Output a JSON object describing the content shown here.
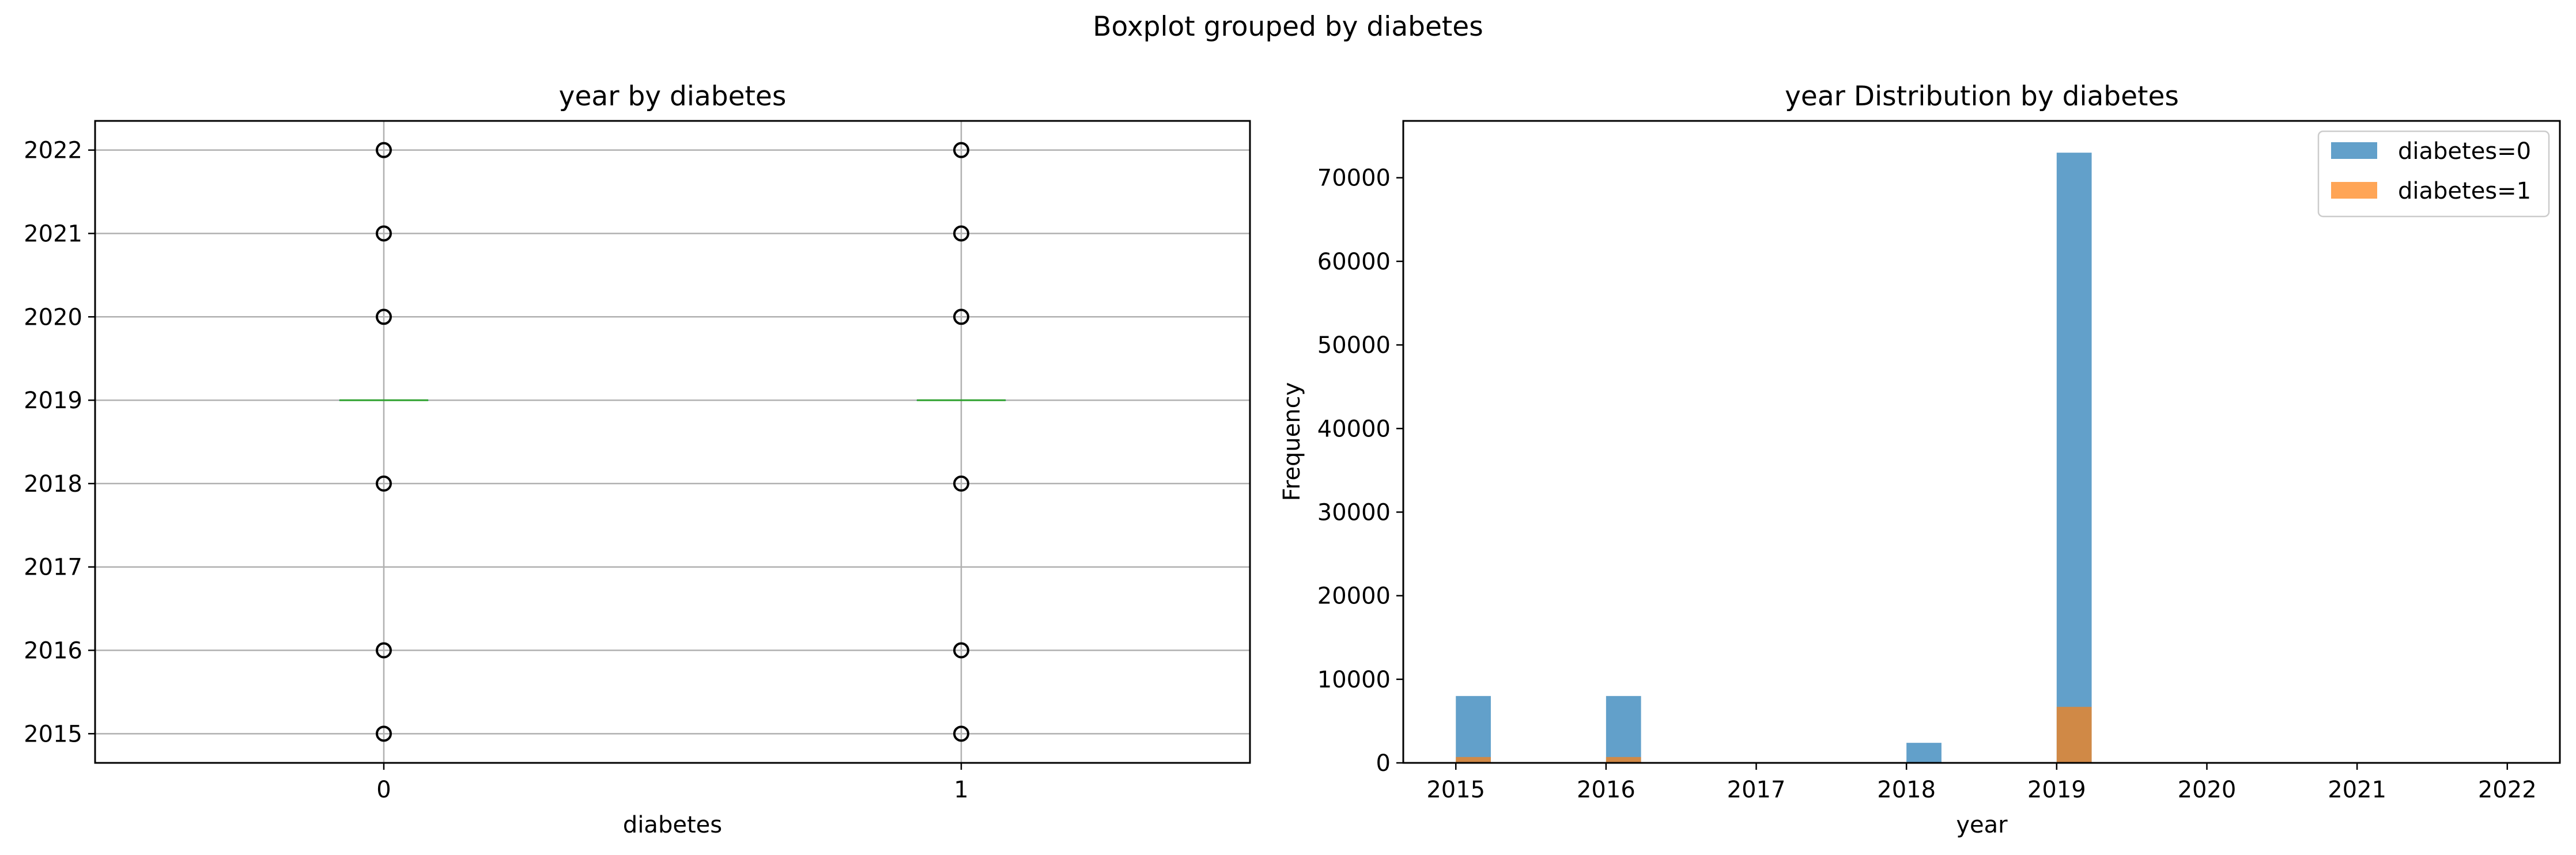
{
  "suptitle": "Boxplot grouped by diabetes",
  "chart_data": [
    {
      "type": "box",
      "title": "year by diabetes",
      "xlabel": "diabetes",
      "ylabel": "",
      "categories": [
        "0",
        "1"
      ],
      "ylim": [
        2014.65,
        2022.35
      ],
      "yticks": [
        2015,
        2016,
        2017,
        2018,
        2019,
        2020,
        2021,
        2022
      ],
      "grid": true,
      "boxes": [
        {
          "category": "0",
          "q1": 2019,
          "median": 2019,
          "q3": 2019,
          "whisker_low": 2019,
          "whisker_high": 2019,
          "fliers": [
            2015,
            2016,
            2018,
            2020,
            2021,
            2022
          ]
        },
        {
          "category": "1",
          "q1": 2019,
          "median": 2019,
          "q3": 2019,
          "whisker_low": 2019,
          "whisker_high": 2019,
          "fliers": [
            2015,
            2016,
            2018,
            2020,
            2021,
            2022
          ]
        }
      ],
      "colors": {
        "median": "#2ca02c",
        "box": "#1f77b4",
        "grid": "#b0b0b0"
      }
    },
    {
      "type": "histogram",
      "title": "year Distribution by diabetes",
      "xlabel": "year",
      "ylabel": "Frequency",
      "xlim": [
        2014.65,
        2022.35
      ],
      "ylim": [
        0,
        76800
      ],
      "xticks": [
        2015,
        2016,
        2017,
        2018,
        2019,
        2020,
        2021,
        2022
      ],
      "yticks": [
        0,
        10000,
        20000,
        30000,
        40000,
        50000,
        60000,
        70000
      ],
      "bin_width": 0.233,
      "legend_position": "top-right",
      "series": [
        {
          "name": "diabetes=0",
          "color": "#1f77b4",
          "bars": [
            {
              "x": 2015,
              "value": 8000
            },
            {
              "x": 2016,
              "value": 8000
            },
            {
              "x": 2018,
              "value": 2400
            },
            {
              "x": 2019,
              "value": 73000
            }
          ]
        },
        {
          "name": "diabetes=1",
          "color": "#ff7f0e",
          "bars": [
            {
              "x": 2015,
              "value": 700
            },
            {
              "x": 2016,
              "value": 700
            },
            {
              "x": 2018,
              "value": 100
            },
            {
              "x": 2019,
              "value": 6700
            }
          ]
        }
      ]
    }
  ]
}
